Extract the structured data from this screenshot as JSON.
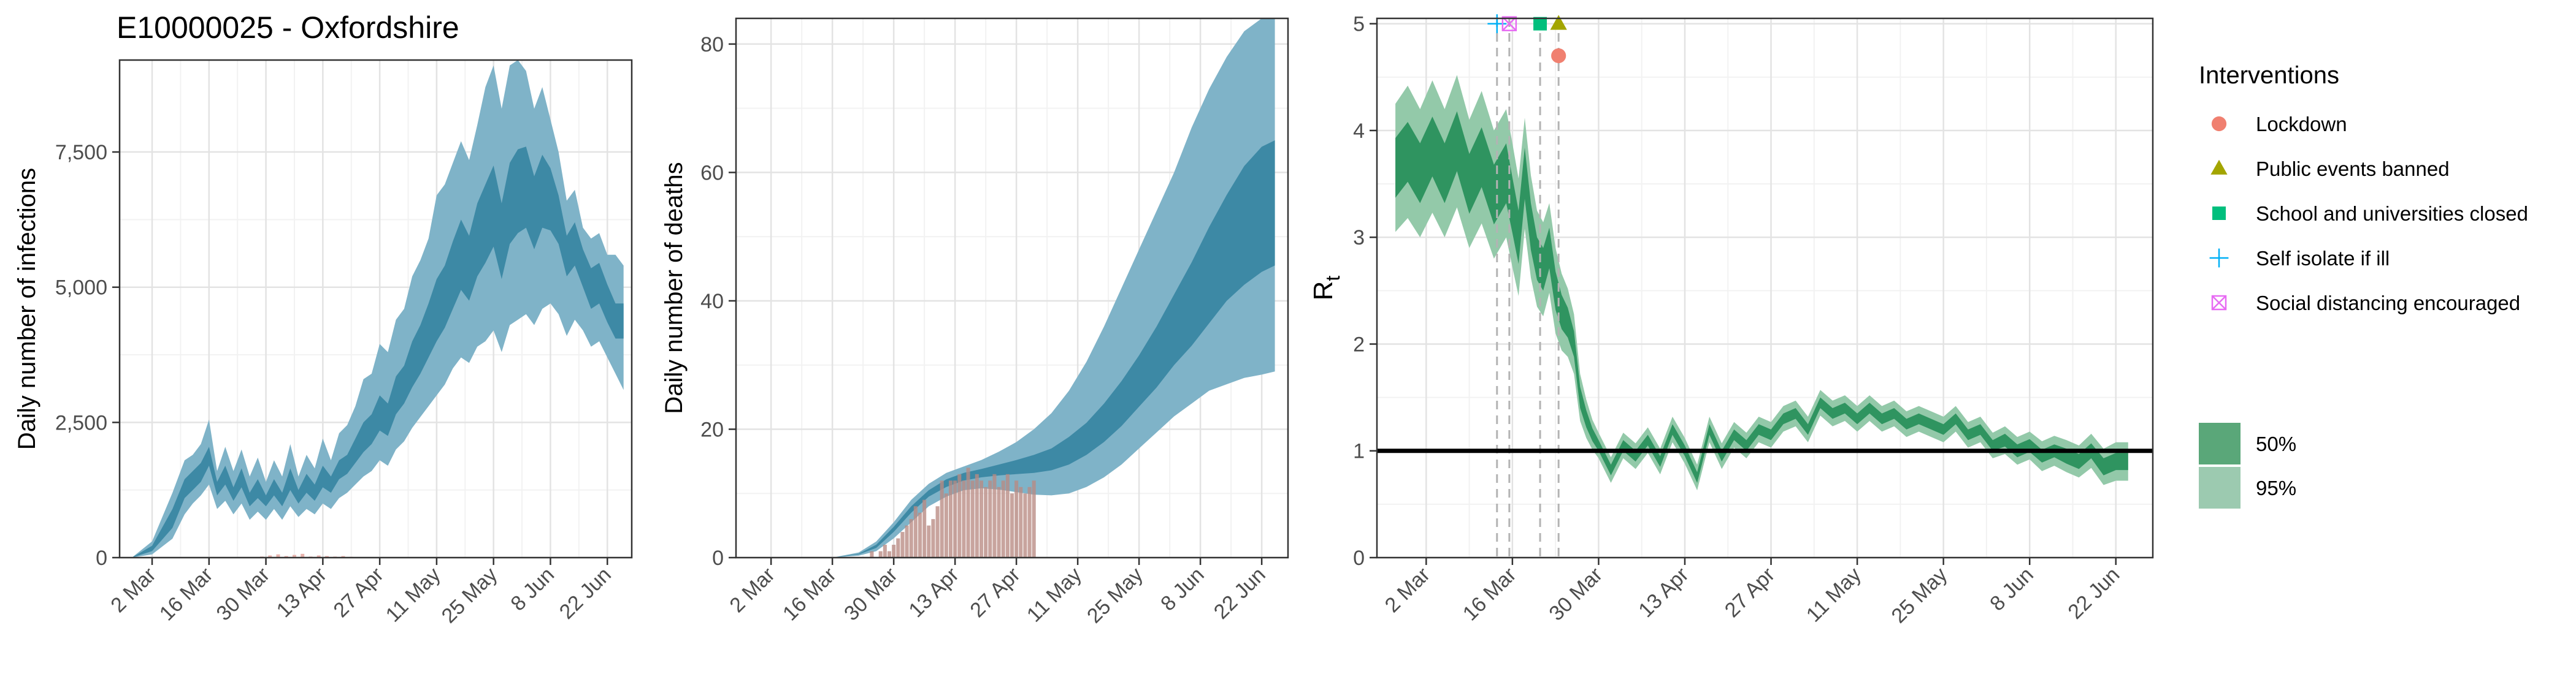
{
  "title": "E10000025 - Oxfordshire",
  "chart_data": [
    {
      "type": "area",
      "ylabel": "Daily number of infections",
      "xlabel": "",
      "x_tick_labels": [
        "2 Mar",
        "16 Mar",
        "30 Mar",
        "13 Apr",
        "27 Apr",
        "11 May",
        "25 May",
        "8 Jun",
        "22 Jun"
      ],
      "x_tick_days": [
        0,
        14,
        28,
        42,
        56,
        70,
        84,
        98,
        112
      ],
      "xlim_days": [
        -8,
        118
      ],
      "ylim": [
        0,
        9200
      ],
      "y_ticks": [
        0,
        2500,
        5000,
        7500
      ],
      "y_tick_labels": [
        "0",
        "2,500",
        "5,000",
        "7,500"
      ],
      "grid": true,
      "x_day0": "2 Mar",
      "series": [
        {
          "role": "95% interval",
          "color": "#7fb3c8",
          "x": [
            -5,
            0,
            5,
            8,
            10,
            12,
            14,
            16,
            18,
            20,
            22,
            24,
            26,
            28,
            30,
            32,
            34,
            36,
            38,
            40,
            42,
            44,
            46,
            48,
            50,
            52,
            54,
            56,
            58,
            60,
            62,
            64,
            66,
            68,
            70,
            72,
            74,
            76,
            78,
            80,
            82,
            84,
            86,
            88,
            90,
            92,
            94,
            96,
            98,
            100,
            102,
            104,
            106,
            108,
            110,
            112,
            114,
            116
          ],
          "low": [
            0,
            60,
            350,
            800,
            1000,
            1150,
            1350,
            900,
            1050,
            800,
            1000,
            700,
            850,
            700,
            900,
            700,
            950,
            750,
            900,
            800,
            1000,
            900,
            1100,
            1200,
            1350,
            1500,
            1600,
            1800,
            1700,
            2000,
            2150,
            2400,
            2600,
            2800,
            3000,
            3200,
            3500,
            3700,
            3600,
            3900,
            4000,
            4200,
            3800,
            4300,
            4400,
            4500,
            4300,
            4600,
            4700,
            4500,
            4100,
            4400,
            4200,
            3900,
            4000,
            3700,
            3400,
            3100
          ],
          "high": [
            0,
            300,
            1200,
            1800,
            1900,
            2100,
            2550,
            1600,
            2050,
            1600,
            2000,
            1500,
            1850,
            1400,
            1800,
            1500,
            2100,
            1500,
            1900,
            1650,
            2200,
            1800,
            2300,
            2450,
            2800,
            3300,
            3400,
            3950,
            3800,
            4400,
            4600,
            5200,
            5500,
            5900,
            6700,
            6900,
            7300,
            7700,
            7350,
            8000,
            8700,
            9100,
            8300,
            9100,
            9200,
            9000,
            8300,
            8700,
            8100,
            7500,
            6600,
            6800,
            6100,
            5900,
            6000,
            5600,
            5600,
            5400
          ]
        },
        {
          "role": "50% interval",
          "color": "#3d89a5",
          "x": [
            -5,
            0,
            5,
            8,
            10,
            12,
            14,
            16,
            18,
            20,
            22,
            24,
            26,
            28,
            30,
            32,
            34,
            36,
            38,
            40,
            42,
            44,
            46,
            48,
            50,
            52,
            54,
            56,
            58,
            60,
            62,
            64,
            66,
            68,
            70,
            72,
            74,
            76,
            78,
            80,
            82,
            84,
            86,
            88,
            90,
            92,
            94,
            96,
            98,
            100,
            102,
            104,
            106,
            108,
            110,
            112,
            114,
            116
          ],
          "low": [
            0,
            120,
            550,
            1100,
            1250,
            1400,
            1700,
            1150,
            1350,
            1050,
            1300,
            950,
            1100,
            950,
            1150,
            950,
            1250,
            1000,
            1200,
            1050,
            1300,
            1200,
            1450,
            1550,
            1750,
            1950,
            2100,
            2350,
            2250,
            2650,
            2850,
            3150,
            3400,
            3700,
            4000,
            4250,
            4600,
            4950,
            4750,
            5200,
            5450,
            5750,
            5150,
            5800,
            6000,
            6100,
            5700,
            6100,
            6050,
            5800,
            5200,
            5400,
            5000,
            4600,
            4700,
            4350,
            4050,
            4050
          ]
        },
        {
          "role": "50% interval high",
          "color": "#3d89a5",
          "high": [
            0,
            220,
            900,
            1450,
            1600,
            1750,
            2050,
            1400,
            1700,
            1300,
            1650,
            1200,
            1450,
            1150,
            1450,
            1200,
            1650,
            1250,
            1550,
            1350,
            1700,
            1500,
            1800,
            1900,
            2200,
            2500,
            2650,
            3000,
            2850,
            3350,
            3550,
            4000,
            4300,
            4700,
            5150,
            5400,
            5850,
            6250,
            5950,
            6550,
            6900,
            7250,
            6550,
            7300,
            7550,
            7600,
            7050,
            7450,
            7200,
            6700,
            5950,
            6200,
            5700,
            5350,
            5450,
            5050,
            4700,
            4700
          ]
        }
      ],
      "observed": {
        "color": "#e8b3ad",
        "x": [
          27,
          29,
          31,
          33,
          35,
          37,
          39,
          41,
          43,
          45,
          47,
          49
        ],
        "values": [
          20,
          40,
          60,
          30,
          50,
          70,
          20,
          40,
          30,
          20,
          30,
          15
        ]
      }
    },
    {
      "type": "area",
      "ylabel": "Daily number of deaths",
      "xlabel": "",
      "x_tick_labels": [
        "2 Mar",
        "16 Mar",
        "30 Mar",
        "13 Apr",
        "27 Apr",
        "11 May",
        "25 May",
        "8 Jun",
        "22 Jun"
      ],
      "x_tick_days": [
        0,
        14,
        28,
        42,
        56,
        70,
        84,
        98,
        112
      ],
      "xlim_days": [
        -8,
        118
      ],
      "ylim": [
        0,
        84
      ],
      "y_ticks": [
        0,
        20,
        40,
        60,
        80
      ],
      "y_tick_labels": [
        "0",
        "20",
        "40",
        "60",
        "80"
      ],
      "grid": true,
      "x_day0": "2 Mar",
      "x": [
        14,
        20,
        24,
        28,
        32,
        36,
        40,
        44,
        48,
        52,
        56,
        60,
        64,
        68,
        72,
        76,
        80,
        84,
        88,
        92,
        96,
        100,
        104,
        108,
        112,
        115
      ],
      "ci95_low": [
        0,
        0.3,
        1,
        3,
        5.5,
        8,
        9.5,
        10.5,
        10.8,
        10.6,
        10.2,
        9.8,
        9.7,
        10,
        11,
        12.5,
        14.5,
        17,
        19.5,
        22,
        24,
        26,
        27,
        28,
        28.5,
        29
      ],
      "ci95_high": [
        0,
        0.8,
        2.5,
        5.5,
        9,
        11.5,
        13.2,
        14.2,
        15.2,
        16.5,
        18,
        20,
        22.5,
        26,
        30.5,
        36,
        42,
        48,
        54,
        60,
        67,
        73,
        78,
        82,
        84,
        84
      ],
      "ci50_low": [
        0,
        0.5,
        1.5,
        4,
        7,
        9.5,
        11,
        12,
        12.5,
        12.8,
        13,
        13.2,
        13.6,
        14.5,
        16,
        18,
        20.5,
        23.5,
        26.5,
        30,
        33,
        36.5,
        40,
        42.5,
        44.5,
        45.5
      ],
      "ci50_high": [
        0,
        0.6,
        2,
        4.8,
        8,
        10.5,
        12.2,
        13.2,
        13.8,
        14.5,
        15.2,
        16,
        17,
        18.8,
        21,
        24,
        27.5,
        31.5,
        36,
        41,
        46,
        51.5,
        56.5,
        61,
        64,
        65
      ],
      "colors": {
        "ci95": "#7fb3c8",
        "ci50": "#3d89a5",
        "observed": "#b98a83"
      },
      "observed": {
        "x": [
          22,
          23,
          24,
          25,
          26,
          27,
          28,
          29,
          30,
          31,
          32,
          33,
          34,
          35,
          36,
          37,
          38,
          39,
          40,
          41,
          42,
          43,
          44,
          45,
          46,
          47,
          48,
          49,
          50,
          51,
          52,
          53,
          54,
          55,
          56,
          57,
          58,
          59,
          60
        ],
        "values": [
          0,
          1,
          0,
          1,
          2,
          1,
          2,
          3,
          4,
          5,
          6,
          8,
          7,
          9,
          5,
          6,
          8,
          12,
          10,
          12,
          12,
          13,
          12,
          14,
          12,
          13,
          12,
          11,
          12,
          13,
          11,
          12,
          13,
          10,
          12,
          11,
          10,
          11,
          12
        ]
      }
    },
    {
      "type": "area",
      "ylabel": "Rt",
      "ylabel_main": "R",
      "ylabel_sub": "t",
      "xlabel": "",
      "x_tick_labels": [
        "2 Mar",
        "16 Mar",
        "30 Mar",
        "13 Apr",
        "27 Apr",
        "11 May",
        "25 May",
        "8 Jun",
        "22 Jun"
      ],
      "x_tick_days": [
        0,
        14,
        28,
        42,
        56,
        70,
        84,
        98,
        112
      ],
      "xlim_days": [
        -8,
        118
      ],
      "ylim": [
        0,
        5.05
      ],
      "y_ticks": [
        0,
        1,
        2,
        3,
        4,
        5
      ],
      "y_tick_labels": [
        "0",
        "1",
        "2",
        "3",
        "4",
        "5"
      ],
      "reference_line": 1,
      "grid": true,
      "x_day0": "2 Mar",
      "x": [
        -5,
        -3,
        -1,
        1,
        3,
        5,
        7,
        9,
        11,
        13,
        14,
        15,
        16,
        17,
        18,
        19,
        20,
        21,
        22,
        23,
        24,
        25,
        26,
        27,
        28,
        30,
        32,
        34,
        36,
        38,
        40,
        42,
        44,
        46,
        48,
        50,
        52,
        54,
        56,
        58,
        60,
        62,
        64,
        66,
        68,
        70,
        72,
        74,
        76,
        78,
        80,
        82,
        84,
        86,
        88,
        90,
        92,
        94,
        96,
        98,
        100,
        102,
        104,
        106,
        108,
        110,
        112,
        114
      ],
      "median": [
        3.65,
        3.8,
        3.6,
        3.85,
        3.6,
        3.9,
        3.5,
        3.75,
        3.4,
        3.6,
        3.3,
        3.0,
        3.6,
        3.1,
        2.8,
        2.7,
        2.9,
        2.5,
        2.3,
        2.2,
        2.0,
        1.5,
        1.3,
        1.15,
        1.05,
        0.82,
        1.05,
        0.95,
        1.1,
        0.9,
        1.2,
        1.0,
        0.75,
        1.2,
        0.95,
        1.15,
        1.05,
        1.2,
        1.15,
        1.3,
        1.35,
        1.2,
        1.45,
        1.35,
        1.4,
        1.3,
        1.4,
        1.3,
        1.35,
        1.25,
        1.3,
        1.25,
        1.2,
        1.3,
        1.15,
        1.2,
        1.05,
        1.1,
        1.0,
        1.05,
        0.95,
        1.0,
        0.95,
        0.9,
        1.0,
        0.85,
        0.9,
        0.9
      ],
      "ci50_half": [
        0.28,
        0.28,
        0.28,
        0.28,
        0.28,
        0.28,
        0.28,
        0.28,
        0.28,
        0.28,
        0.26,
        0.25,
        0.24,
        0.22,
        0.2,
        0.2,
        0.19,
        0.18,
        0.16,
        0.14,
        0.12,
        0.1,
        0.08,
        0.06,
        0.05,
        0.05,
        0.05,
        0.05,
        0.05,
        0.05,
        0.05,
        0.05,
        0.05,
        0.05,
        0.05,
        0.05,
        0.05,
        0.05,
        0.05,
        0.05,
        0.05,
        0.05,
        0.05,
        0.05,
        0.05,
        0.05,
        0.05,
        0.05,
        0.05,
        0.05,
        0.05,
        0.05,
        0.05,
        0.05,
        0.05,
        0.05,
        0.05,
        0.06,
        0.06,
        0.06,
        0.06,
        0.06,
        0.07,
        0.07,
        0.07,
        0.08,
        0.08,
        0.08
      ],
      "ci95_half": [
        0.6,
        0.62,
        0.6,
        0.62,
        0.6,
        0.62,
        0.6,
        0.62,
        0.6,
        0.6,
        0.58,
        0.55,
        0.52,
        0.48,
        0.45,
        0.44,
        0.42,
        0.4,
        0.36,
        0.32,
        0.28,
        0.22,
        0.18,
        0.14,
        0.12,
        0.12,
        0.12,
        0.12,
        0.12,
        0.12,
        0.12,
        0.12,
        0.12,
        0.12,
        0.12,
        0.12,
        0.12,
        0.12,
        0.12,
        0.12,
        0.12,
        0.12,
        0.12,
        0.12,
        0.12,
        0.12,
        0.12,
        0.12,
        0.12,
        0.12,
        0.12,
        0.12,
        0.12,
        0.12,
        0.12,
        0.12,
        0.12,
        0.13,
        0.13,
        0.13,
        0.14,
        0.14,
        0.15,
        0.15,
        0.16,
        0.17,
        0.18,
        0.18
      ],
      "colors": {
        "ci50": "#2f9460",
        "ci95": "#93c9a9"
      },
      "interventions": [
        {
          "name": "Lockdown",
          "day": 21.5,
          "y": 4.7,
          "shape": "circle",
          "color": "#f08070"
        },
        {
          "name": "Public events banned",
          "day": 21.5,
          "y": 5.0,
          "shape": "triangle",
          "color": "#a3a500"
        },
        {
          "name": "School and universities closed",
          "day": 18.5,
          "y": 5.0,
          "shape": "square",
          "color": "#00bf7d"
        },
        {
          "name": "Self isolate if ill",
          "day": 11.5,
          "y": 5.0,
          "shape": "plus",
          "color": "#00b0f6"
        },
        {
          "name": "Social distancing encouraged",
          "day": 13.5,
          "y": 5.0,
          "shape": "boxx",
          "color": "#e76bf3"
        }
      ],
      "intervention_lines_days": [
        11.5,
        13.5,
        18.5,
        21.5
      ]
    }
  ],
  "legend": {
    "title": "Interventions",
    "items": [
      {
        "label": "Lockdown",
        "shape": "circle",
        "color": "#f08070"
      },
      {
        "label": "Public events banned",
        "shape": "triangle",
        "color": "#a3a500"
      },
      {
        "label": "School and universities closed",
        "shape": "square",
        "color": "#00bf7d"
      },
      {
        "label": "Self isolate if ill",
        "shape": "plus",
        "color": "#00b0f6"
      },
      {
        "label": "Social distancing encouraged",
        "shape": "boxx",
        "color": "#e76bf3"
      }
    ],
    "intervals": [
      {
        "label": "50%",
        "color": "#5aa779"
      },
      {
        "label": "95%",
        "color": "#9ccab0"
      }
    ]
  }
}
